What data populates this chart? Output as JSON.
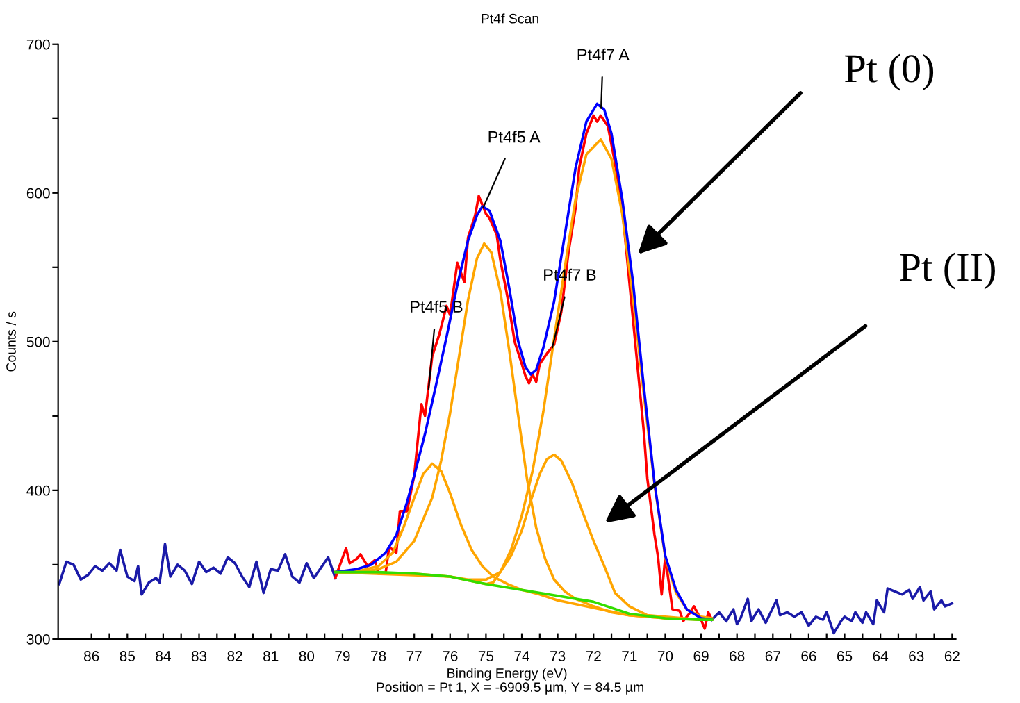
{
  "chart_data": {
    "type": "line",
    "title": "Pt4f Scan",
    "xlabel": "Binding Energy (eV)",
    "ylabel": "Counts / s",
    "xlim": [
      86.93,
      61.9
    ],
    "ylim": [
      300,
      700
    ],
    "xticks": [
      86,
      {
        "value": 85.5,
        "label": null
      },
      85,
      {
        "value": 84.5,
        "label": null
      },
      84,
      {
        "value": 83.5,
        "label": null
      },
      83,
      {
        "value": 82.5,
        "label": null
      },
      82,
      {
        "value": 81.5,
        "label": null
      },
      81,
      {
        "value": 80.5,
        "label": null
      },
      80,
      {
        "value": 79.5,
        "label": null
      },
      79,
      {
        "value": 78.5,
        "label": null
      },
      78,
      {
        "value": 77.5,
        "label": null
      },
      77,
      {
        "value": 76.5,
        "label": null
      },
      76,
      {
        "value": 75.5,
        "label": null
      },
      75,
      {
        "value": 74.5,
        "label": null
      },
      74,
      {
        "value": 73.5,
        "label": null
      },
      73,
      {
        "value": 72.5,
        "label": null
      },
      72,
      {
        "value": 71.5,
        "label": null
      },
      71,
      {
        "value": 70.5,
        "label": null
      },
      70,
      {
        "value": 69.5,
        "label": null
      },
      69,
      {
        "value": 68.5,
        "label": null
      },
      68,
      {
        "value": 67.5,
        "label": null
      },
      67,
      {
        "value": 66.5,
        "label": null
      },
      66,
      {
        "value": 65.5,
        "label": null
      },
      65,
      {
        "value": 64.5,
        "label": null
      },
      64,
      {
        "value": 63.5,
        "label": null
      },
      63,
      {
        "value": 62.5,
        "label": null
      },
      62
    ],
    "yticks": [
      300,
      {
        "value": 350,
        "label": null
      },
      400,
      {
        "value": 450,
        "label": null
      },
      500,
      {
        "value": 550,
        "label": null
      },
      600,
      {
        "value": 650,
        "label": null
      },
      700
    ],
    "grid": false,
    "series": [
      {
        "color": "#1a1aa8",
        "x": [
          86.9,
          86.7,
          86.5,
          86.3,
          86.1,
          85.9,
          85.7,
          85.5,
          85.3,
          85.2,
          85.0,
          84.8,
          84.7,
          84.6,
          84.4,
          84.2,
          84.1,
          83.95,
          83.8,
          83.6,
          83.4,
          83.2,
          83.0,
          82.8,
          82.6,
          82.4,
          82.2,
          82.0,
          81.8,
          81.6,
          81.4,
          81.2,
          81.0,
          80.8,
          80.6,
          80.4,
          80.2,
          80.0,
          79.8,
          79.6,
          79.4,
          79.2
        ],
        "values": [
          337,
          352,
          350,
          340,
          343,
          349,
          346,
          351,
          346,
          360,
          342,
          339,
          349,
          330,
          338,
          341,
          338,
          364,
          342,
          350,
          346,
          337,
          352,
          345,
          348,
          344,
          355,
          351,
          342,
          335,
          352,
          331,
          347,
          346,
          357,
          342,
          338,
          351,
          341,
          348,
          355,
          341
        ]
      },
      {
        "color": "#ff0000",
        "x": [
          79.2,
          79.1,
          78.9,
          78.8,
          78.6,
          78.5,
          78.3,
          78.1,
          78.0,
          77.8,
          77.7,
          77.5,
          77.4,
          77.2,
          77.0,
          76.8,
          76.7,
          76.5,
          76.3,
          76.1,
          76.0,
          75.8,
          75.6,
          75.5,
          75.3,
          75.2,
          75.0,
          74.9,
          74.7,
          74.6,
          74.4,
          74.2,
          74.0,
          73.9,
          73.8,
          73.7,
          73.6,
          73.5,
          73.3,
          73.1,
          72.9,
          72.7,
          72.5,
          72.4,
          72.2,
          72.0,
          71.9,
          71.8,
          71.6,
          71.4,
          71.2,
          71.0,
          70.8,
          70.6,
          70.5,
          70.3,
          70.2,
          70.1,
          70.0,
          69.8,
          69.6,
          69.5,
          69.3,
          69.2,
          69.0,
          68.9,
          68.8,
          68.7
        ],
        "values": [
          341,
          348,
          361,
          351,
          354,
          357,
          349,
          353,
          344,
          344,
          362,
          358,
          386,
          386,
          410,
          458,
          450,
          490,
          505,
          524,
          518,
          553,
          540,
          570,
          585,
          598,
          586,
          583,
          572,
          555,
          530,
          500,
          485,
          477,
          472,
          478,
          473,
          485,
          492,
          498,
          520,
          560,
          590,
          617,
          640,
          652,
          648,
          652,
          645,
          620,
          590,
          540,
          490,
          440,
          408,
          370,
          355,
          330,
          355,
          320,
          319,
          312,
          318,
          322,
          313,
          307,
          318,
          313
        ]
      },
      {
        "color": "#1a1aa8",
        "x": [
          68.7,
          68.5,
          68.3,
          68.1,
          68.0,
          67.9,
          67.7,
          67.6,
          67.4,
          67.2,
          67.1,
          66.9,
          66.8,
          66.6,
          66.4,
          66.2,
          66.0,
          65.8,
          65.6,
          65.5,
          65.3,
          65.1,
          65.0,
          64.8,
          64.7,
          64.5,
          64.4,
          64.2,
          64.1,
          63.9,
          63.8,
          63.6,
          63.4,
          63.2,
          63.1,
          62.9,
          62.8,
          62.6,
          62.5,
          62.3,
          62.2,
          62.0
        ],
        "values": [
          313,
          318,
          312,
          320,
          310,
          314,
          327,
          312,
          320,
          311,
          316,
          326,
          316,
          318,
          315,
          318,
          309,
          315,
          313,
          318,
          304,
          312,
          315,
          312,
          318,
          311,
          318,
          310,
          326,
          318,
          334,
          332,
          330,
          333,
          327,
          335,
          326,
          332,
          320,
          326,
          322,
          324
        ]
      },
      {
        "color": "#ffa500",
        "x": [
          79.2,
          78.5,
          78.0,
          77.5,
          77.0,
          76.5,
          76.25,
          76.0,
          75.75,
          75.5,
          75.25,
          75.05,
          74.85,
          74.6,
          74.35,
          74.1,
          73.85,
          73.6,
          73.35,
          73.1,
          72.8,
          72.5,
          72.0,
          71.5,
          71.0,
          70.0,
          69.0,
          68.7
        ],
        "values": [
          345,
          345,
          347,
          352,
          366,
          395,
          420,
          452,
          490,
          528,
          556,
          566,
          560,
          534,
          494,
          450,
          407,
          375,
          354,
          340,
          332,
          327,
          322,
          318,
          316,
          314,
          313,
          313
        ]
      },
      {
        "color": "#ffa500",
        "x": [
          79.2,
          78.5,
          78.0,
          77.6,
          77.3,
          77.0,
          76.75,
          76.5,
          76.25,
          76.0,
          75.7,
          75.4,
          75.1,
          74.8,
          74.4,
          74.0,
          73.5,
          73.0,
          72.0,
          71.0,
          70.0,
          68.7
        ],
        "values": [
          345,
          346,
          349,
          358,
          375,
          395,
          411,
          418,
          413,
          398,
          377,
          360,
          349,
          342,
          337,
          333,
          330,
          326,
          321,
          316,
          314,
          313
        ]
      },
      {
        "color": "#ffa500",
        "x": [
          79.2,
          77.0,
          76.0,
          75.5,
          75.0,
          74.6,
          74.3,
          74.0,
          73.75,
          73.5,
          73.3,
          73.1,
          72.9,
          72.6,
          72.3,
          72.0,
          71.7,
          71.4,
          71.0,
          70.5,
          70.0,
          69.0,
          68.7
        ],
        "values": [
          345,
          344,
          342,
          340,
          340,
          345,
          356,
          373,
          393,
          411,
          421,
          424,
          420,
          405,
          385,
          366,
          349,
          331,
          322,
          316,
          315,
          313,
          313
        ]
      },
      {
        "color": "#ffa500",
        "x": [
          79.2,
          76.0,
          75.0,
          74.8,
          74.6,
          74.3,
          74.0,
          73.7,
          73.4,
          73.1,
          72.8,
          72.5,
          72.2,
          71.8,
          71.5,
          71.2,
          70.9,
          70.6,
          70.3,
          70.0,
          69.7,
          69.4,
          69.0,
          68.7
        ],
        "values": [
          345,
          342,
          337,
          338,
          345,
          360,
          383,
          413,
          453,
          502,
          550,
          596,
          626,
          636,
          623,
          586,
          530,
          465,
          404,
          355,
          331,
          320,
          315,
          314
        ]
      },
      {
        "color": "#0000ff",
        "x": [
          79.2,
          78.6,
          78.2,
          77.8,
          77.5,
          77.2,
          77.0,
          76.7,
          76.4,
          76.1,
          75.8,
          75.5,
          75.25,
          75.1,
          74.9,
          74.6,
          74.35,
          74.1,
          73.9,
          73.75,
          73.6,
          73.4,
          73.1,
          72.8,
          72.5,
          72.2,
          71.9,
          71.7,
          71.5,
          71.2,
          70.9,
          70.6,
          70.3,
          70.0,
          69.7,
          69.4,
          69.0,
          68.7
        ],
        "values": [
          345,
          347,
          350,
          358,
          370,
          392,
          410,
          438,
          470,
          503,
          538,
          568,
          585,
          591,
          588,
          568,
          536,
          500,
          483,
          478,
          481,
          496,
          527,
          572,
          617,
          648,
          660,
          656,
          640,
          596,
          540,
          470,
          405,
          356,
          333,
          320,
          314,
          313
        ]
      },
      {
        "color": "#33dd00",
        "x": [
          79.2,
          78.0,
          77.0,
          76.0,
          75.0,
          74.0,
          73.0,
          72.0,
          71.0,
          70.0,
          69.0,
          68.7
        ],
        "values": [
          345,
          345,
          344,
          342,
          337,
          333,
          329,
          325,
          317,
          314,
          313,
          313
        ]
      }
    ],
    "annotations": [
      {
        "text": "Pt4f5 A",
        "x": 75.08,
        "y": 590
      },
      {
        "text": "Pt4f5 B",
        "x": 76.6,
        "y": 468
      },
      {
        "text": "Pt4f7 A",
        "x": 71.79,
        "y": 657
      },
      {
        "text": "Pt4f7 B",
        "x": 73.15,
        "y": 496
      },
      "Pt (0)",
      "Pt (II)",
      "Position = Pt 1, X = -6909.5 µm, Y = 84.5 µm"
    ]
  }
}
